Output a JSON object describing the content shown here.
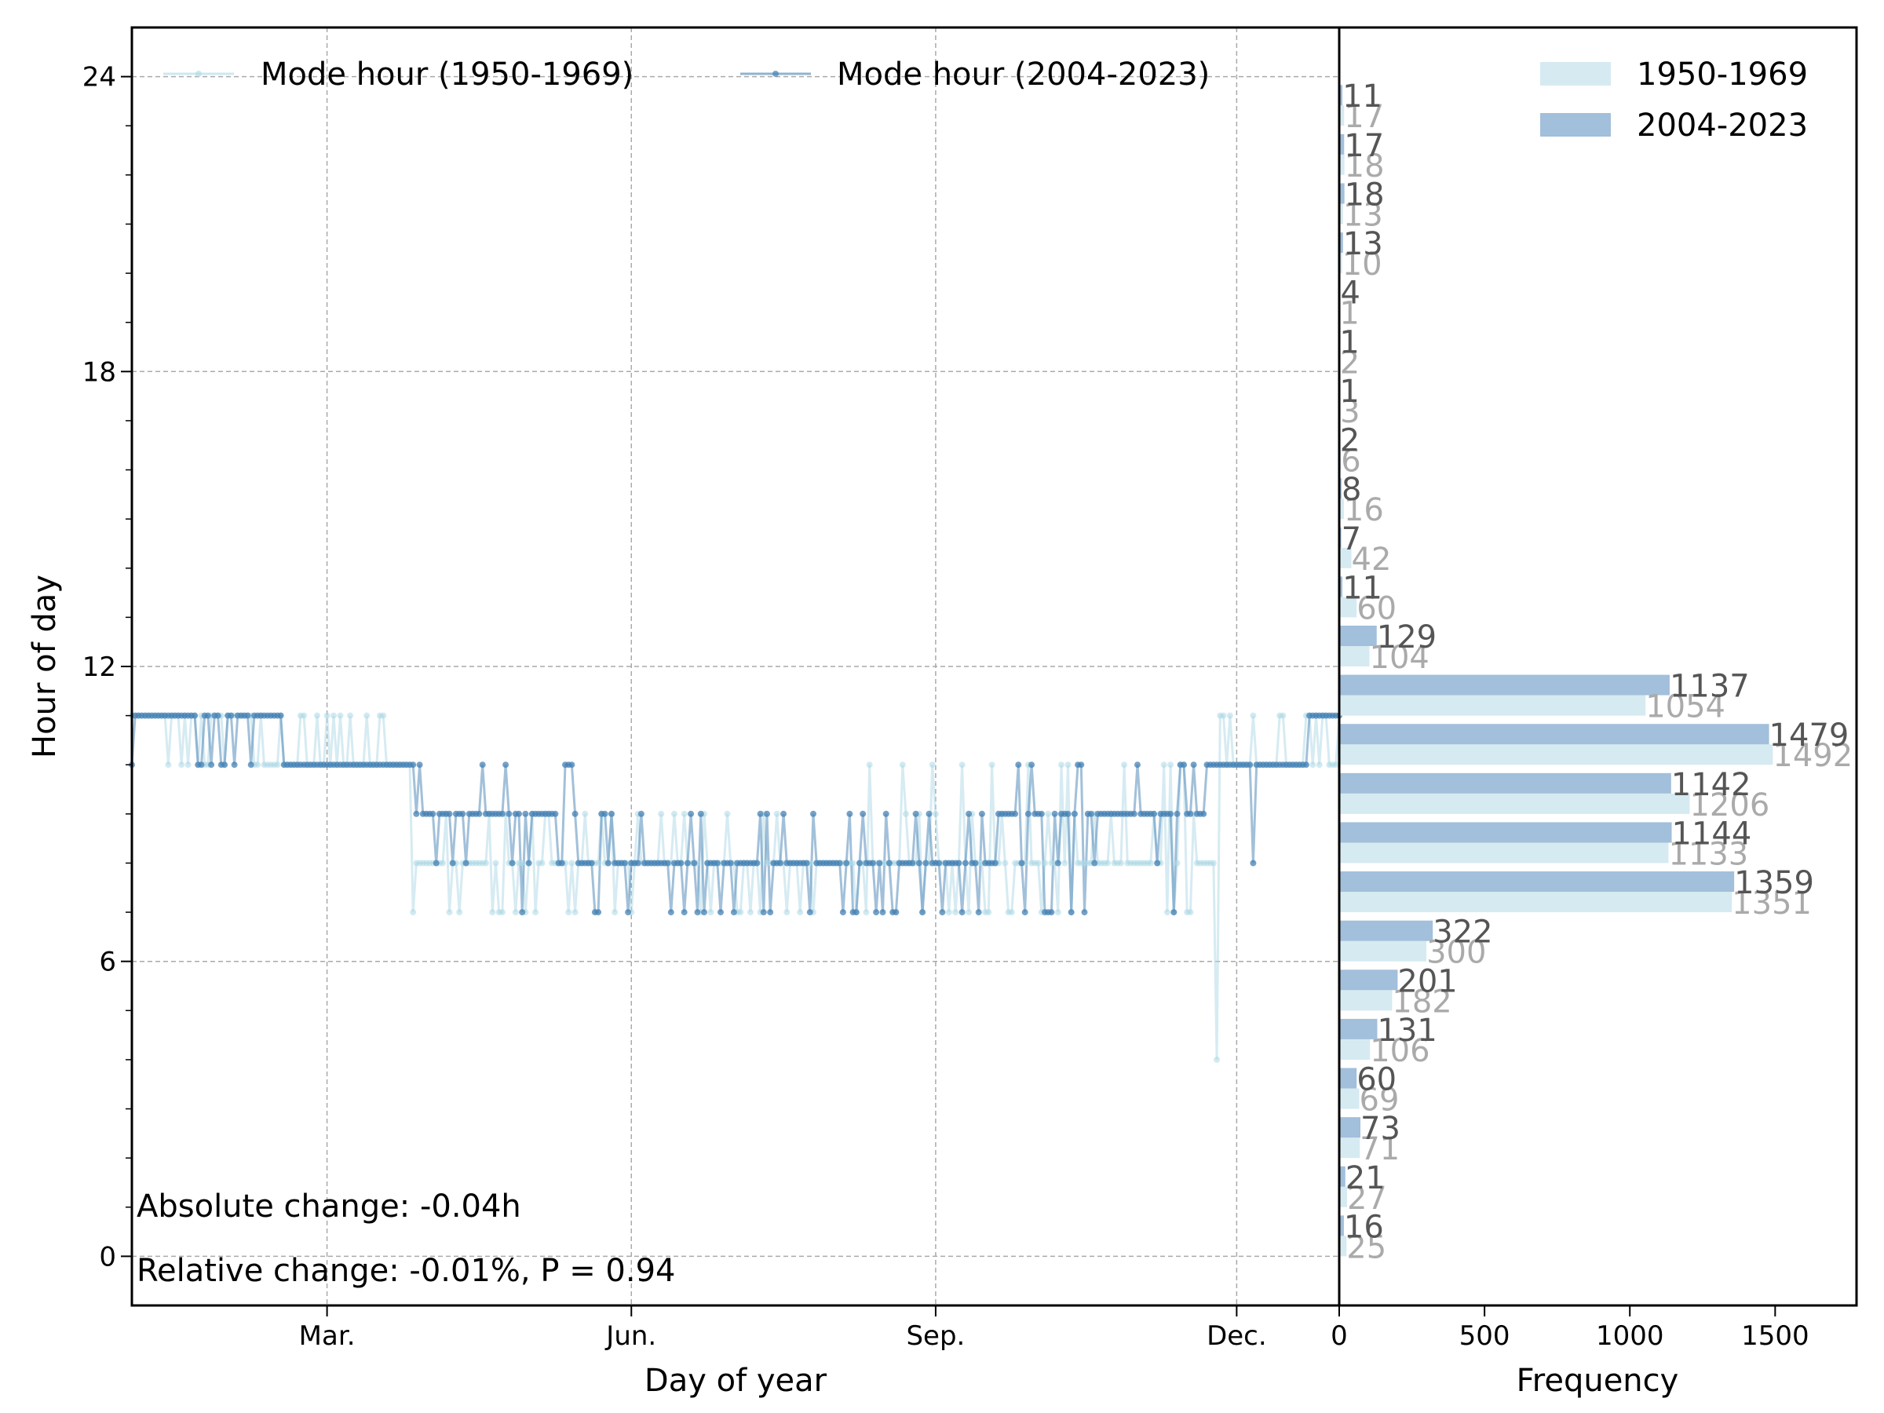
{
  "chart_data": [
    {
      "type": "line",
      "xlabel": "Day of year",
      "ylabel": "Hour of day",
      "xlim": [
        1,
        366
      ],
      "ylim": [
        -1,
        25
      ],
      "x_ticks": [
        {
          "day": 60,
          "label": "Mar."
        },
        {
          "day": 152,
          "label": "Jun."
        },
        {
          "day": 244,
          "label": "Sep."
        },
        {
          "day": 335,
          "label": "Dec."
        }
      ],
      "y_ticks": [
        0,
        6,
        12,
        18,
        24
      ],
      "grid": true,
      "legend_position": "top",
      "series": [
        {
          "name": "Mode hour (1950-1969)",
          "color": "#add8e6",
          "segments": [
            {
              "from": 1,
              "to": 42,
              "value": 11,
              "jitter": [
                10,
                11
              ]
            },
            {
              "from": 43,
              "to": 85,
              "value": 10,
              "jitter": [
                10,
                11
              ]
            },
            {
              "from": 86,
              "to": 200,
              "value": 8,
              "jitter": [
                7,
                8,
                9
              ]
            },
            {
              "from": 201,
              "to": 328,
              "value": 8,
              "jitter": [
                7,
                8,
                9,
                10
              ]
            },
            {
              "from": 329,
              "to": 329,
              "value": 4,
              "jitter": []
            },
            {
              "from": 330,
              "to": 366,
              "value": 10,
              "jitter": [
                10,
                11
              ]
            }
          ]
        },
        {
          "name": "Mode hour (2004-2023)",
          "color": "#4682b4",
          "segments": [
            {
              "from": 1,
              "to": 46,
              "value": 11,
              "jitter": [
                10,
                11
              ]
            },
            {
              "from": 47,
              "to": 86,
              "value": 10,
              "jitter": []
            },
            {
              "from": 87,
              "to": 135,
              "value": 9,
              "jitter": [
                7,
                8,
                9,
                10
              ]
            },
            {
              "from": 136,
              "to": 200,
              "value": 8,
              "jitter": [
                7,
                8,
                9
              ]
            },
            {
              "from": 201,
              "to": 262,
              "value": 8,
              "jitter": [
                7,
                8,
                9
              ]
            },
            {
              "from": 263,
              "to": 325,
              "value": 9,
              "jitter": [
                7,
                8,
                9,
                10
              ]
            },
            {
              "from": 326,
              "to": 356,
              "value": 10,
              "jitter": []
            },
            {
              "from": 357,
              "to": 366,
              "value": 11,
              "jitter": []
            }
          ],
          "outliers": [
            {
              "day": 340,
              "value": 8
            }
          ]
        }
      ],
      "annotations": [
        "Absolute change: -0.04h",
        "Relative change: -0.01%, P = 0.94"
      ]
    },
    {
      "type": "bar",
      "orientation": "horizontal",
      "xlabel": "Frequency",
      "xlim": [
        0,
        1780
      ],
      "x_ticks": [
        0,
        500,
        1000,
        1500
      ],
      "legend_position": "top-right",
      "categories": [
        0,
        1,
        2,
        3,
        4,
        5,
        6,
        7,
        8,
        9,
        10,
        11,
        12,
        13,
        14,
        15,
        16,
        17,
        18,
        19,
        20,
        21,
        22,
        23
      ],
      "series": [
        {
          "name": "1950-1969",
          "color": "#d6eaf1",
          "label_color": "#aaaaaa",
          "values": [
            25,
            27,
            71,
            69,
            106,
            182,
            300,
            1351,
            1133,
            1206,
            1492,
            1054,
            104,
            60,
            42,
            16,
            6,
            3,
            2,
            1,
            10,
            13,
            18,
            17
          ]
        },
        {
          "name": "2004-2023",
          "color": "#a2bfdb",
          "label_color": "#555555",
          "values": [
            16,
            21,
            73,
            60,
            131,
            201,
            322,
            1359,
            1144,
            1142,
            1479,
            1137,
            129,
            11,
            7,
            8,
            2,
            1,
            1,
            4,
            13,
            18,
            17,
            11
          ]
        }
      ]
    }
  ]
}
